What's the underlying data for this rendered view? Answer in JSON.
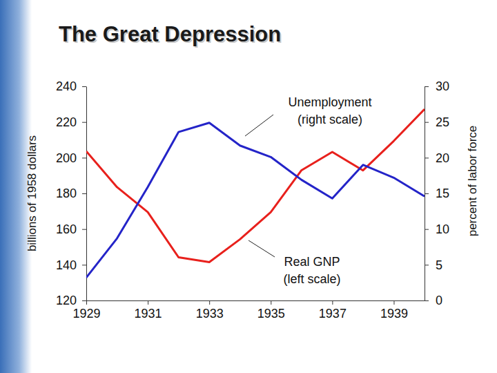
{
  "chart_data": {
    "type": "line",
    "title": "The Great Depression",
    "ylabel": "billions of 1958 dollars",
    "y2label": "percent of labor force",
    "x": [
      1929,
      1930,
      1931,
      1932,
      1933,
      1934,
      1935,
      1936,
      1937,
      1938,
      1939,
      1940
    ],
    "xlim": [
      1929,
      1940
    ],
    "xticks": [
      1929,
      1931,
      1933,
      1935,
      1937,
      1939
    ],
    "ylim": [
      120,
      240
    ],
    "yticks": [
      120,
      140,
      160,
      180,
      200,
      220,
      240
    ],
    "y2lim": [
      0,
      30
    ],
    "y2ticks": [
      0,
      5,
      10,
      15,
      20,
      25,
      30
    ],
    "series": [
      {
        "name": "Real GNP",
        "color": "#e8201c",
        "axis": "y",
        "values": [
          203.6,
          183.5,
          169.5,
          144.2,
          141.5,
          154.3,
          169.5,
          193.0,
          203.2,
          192.9,
          209.4,
          227.2
        ]
      },
      {
        "name": "Unemployment",
        "color": "#2424c8",
        "axis": "y2",
        "values": [
          3.2,
          8.7,
          15.9,
          23.6,
          24.9,
          21.7,
          20.1,
          16.9,
          14.3,
          19.0,
          17.2,
          14.6
        ]
      }
    ],
    "annotations": [
      {
        "lines": [
          "Unemployment",
          "(right scale)"
        ]
      },
      {
        "lines": [
          "Real GNP",
          "(left scale)"
        ]
      }
    ]
  }
}
